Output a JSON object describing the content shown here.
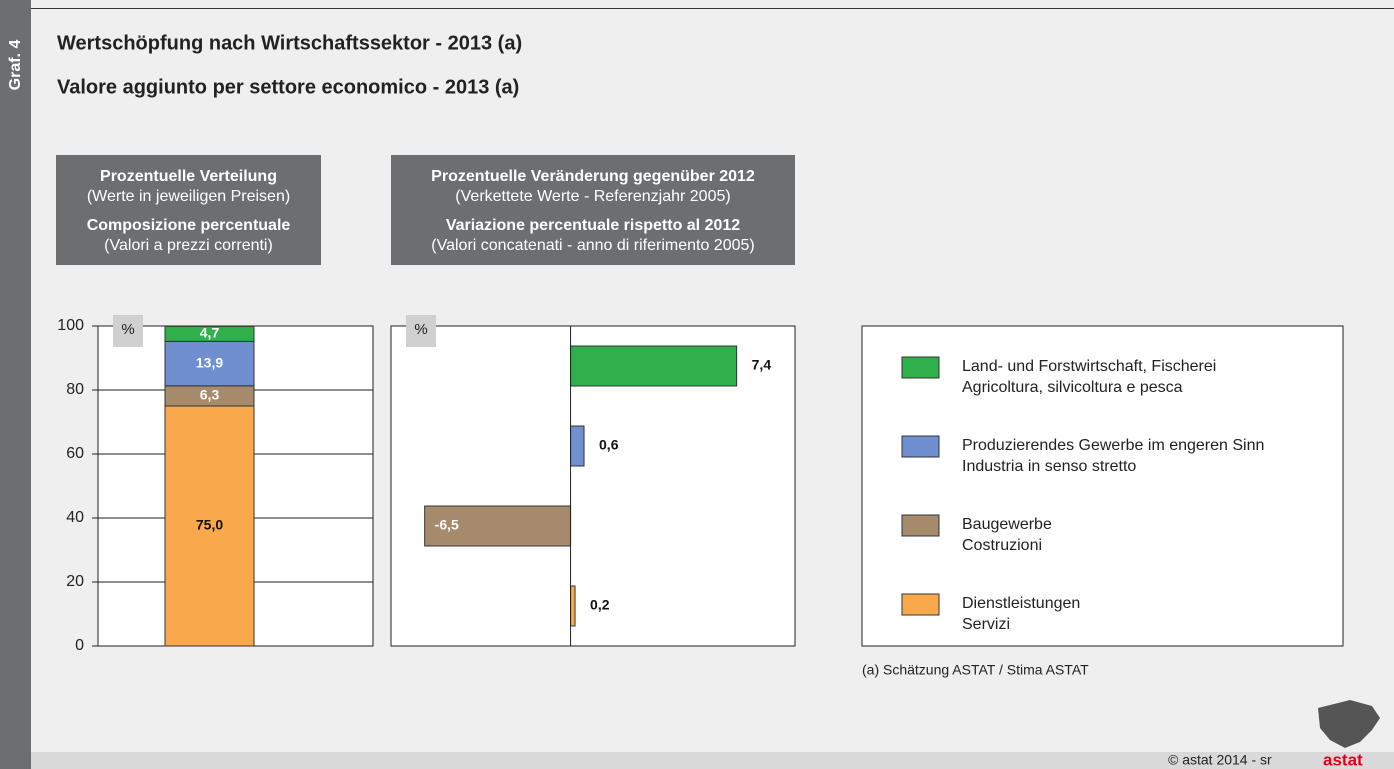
{
  "side_label": "Graf. 4",
  "title": "Wertschöpfung nach Wirtschaftssektor - 2013 (a)",
  "subtitle": "Valore aggiunto per settore economico - 2013 (a)",
  "footnote": "(a)  Schätzung ASTAT / Stima ASTAT",
  "copyright": "©  astat 2014 - sr",
  "logo": "astat",
  "chart_data": [
    {
      "type": "stacked_bar",
      "header": [
        "Prozentuelle Verteilung",
        "(Werte in jeweiligen Preisen)",
        "Composizione percentuale",
        "(Valori a prezzi correnti)"
      ],
      "unit": "%",
      "categories": [
        null
      ],
      "ylim": [
        0,
        100
      ],
      "yticks": [
        0,
        20,
        40,
        60,
        80,
        100
      ],
      "grid": true,
      "series": [
        {
          "name": [
            "Land- und Forstwirtschaft, Fischerei",
            "Agricoltura, silvicoltura e pesca"
          ],
          "color": "#2fb04a",
          "values": [
            4.7
          ],
          "value_labels": [
            "4,7"
          ]
        },
        {
          "name": [
            "Produzierendes Gewerbe im engeren Sinn",
            "Industria in senso stretto"
          ],
          "color": "#6f8fd0",
          "values": [
            13.9
          ],
          "value_labels": [
            "13,9"
          ]
        },
        {
          "name": [
            "Baugewerbe",
            "Costruzioni"
          ],
          "color": "#a58a6c",
          "values": [
            6.3
          ],
          "value_labels": [
            "6,3"
          ]
        },
        {
          "name": [
            "Dienstleistungen",
            "Servizi"
          ],
          "color": "#f9a94b",
          "values": [
            75.0
          ],
          "value_labels": [
            "75,0"
          ]
        }
      ]
    },
    {
      "type": "hbar",
      "header": [
        "Prozentuelle Veränderung gegenüber 2012",
        "(Verkettete Werte - Referenzjahr 2005)",
        "Variazione percentuale rispetto al 2012",
        "(Valori concatenati - anno di riferimento 2005)"
      ],
      "unit": "%",
      "xlim": [
        -8,
        10
      ],
      "values": [
        7.4,
        0.6,
        -6.5,
        0.2
      ],
      "value_labels": [
        "7,4",
        "0,6",
        "-6,5",
        "0,2"
      ],
      "colors": [
        "#2fb04a",
        "#6f8fd0",
        "#a58a6c",
        "#f9a94b"
      ]
    }
  ]
}
